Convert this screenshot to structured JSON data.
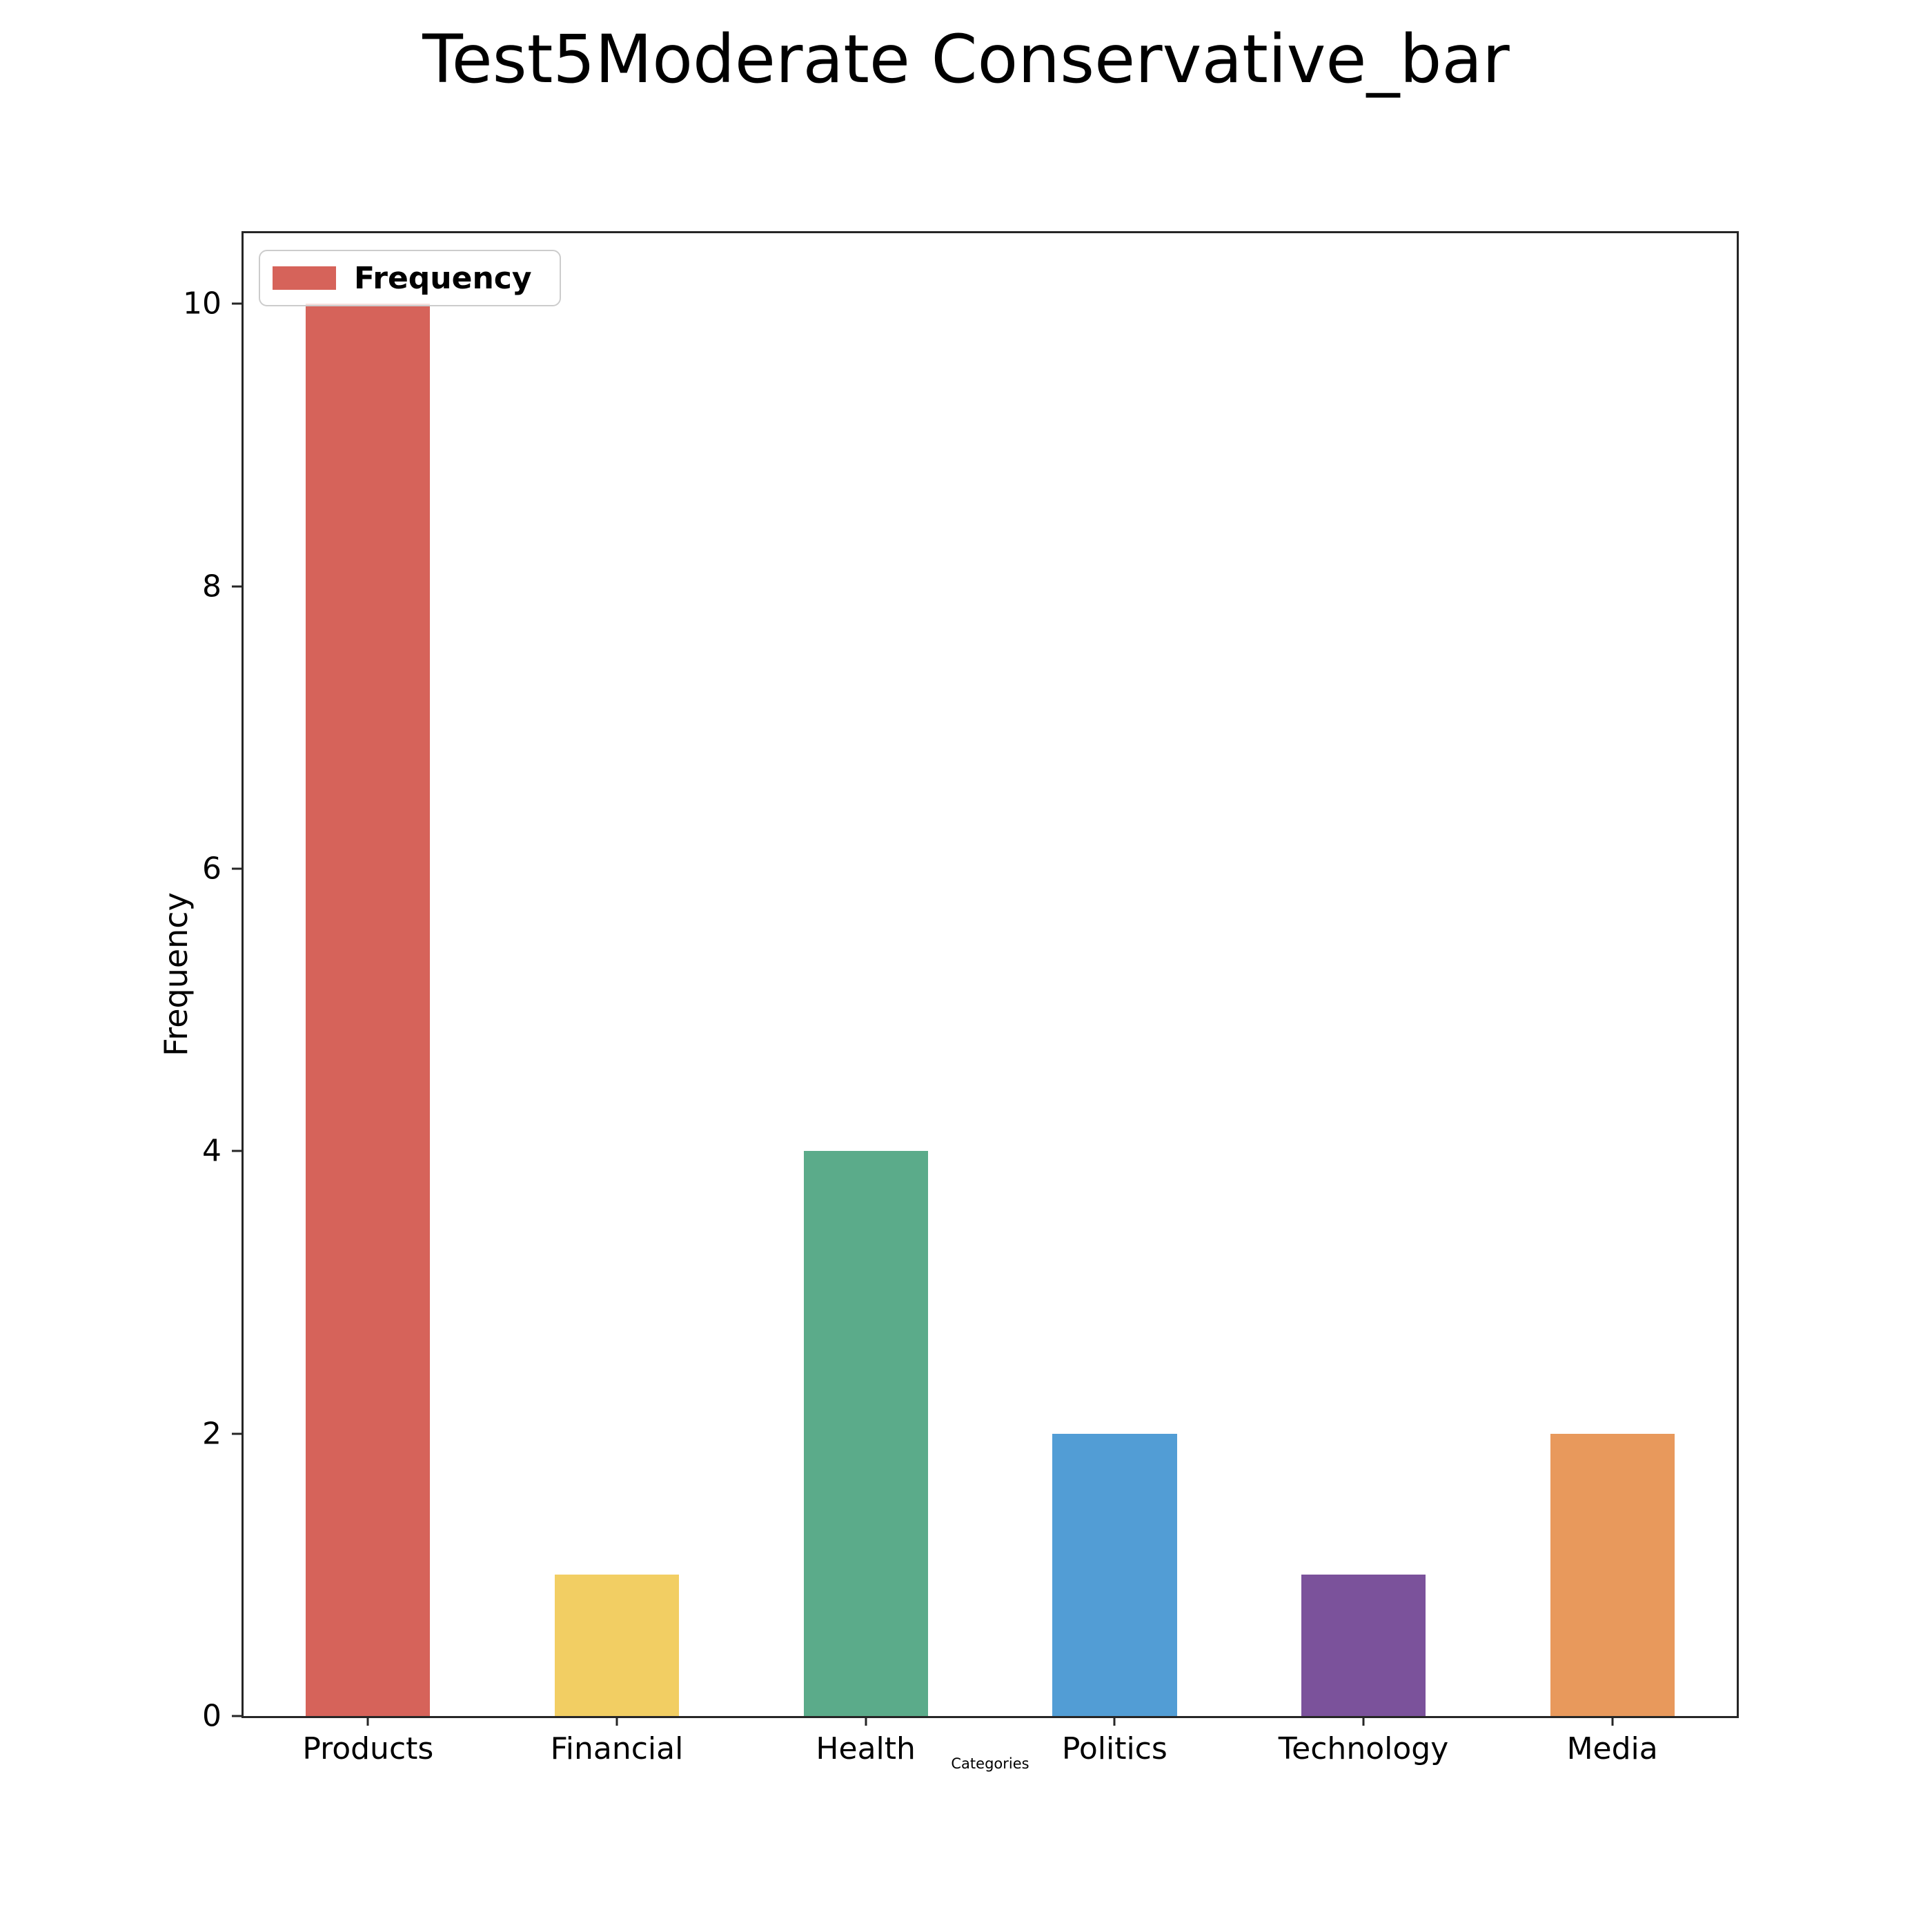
{
  "title": "Test5Moderate Conservative_bar",
  "legend": {
    "label": "Frequency",
    "swatch_color": "#d6635a"
  },
  "axes": {
    "ylabel": "Frequency",
    "xlabel": "Categories"
  },
  "chart_data": {
    "type": "bar",
    "title": "Test5Moderate Conservative_bar",
    "categories": [
      "Products",
      "Financial",
      "Health",
      "Politics",
      "Technology",
      "Media"
    ],
    "values": [
      10,
      1,
      4,
      2,
      1,
      2
    ],
    "bar_colors": [
      "#d6635a",
      "#f2ce63",
      "#5bab8a",
      "#529dd5",
      "#7b529b",
      "#e8995c"
    ],
    "xlabel": "Categories",
    "ylabel": "Frequency",
    "ylim": [
      0,
      10.5
    ],
    "yticks": [
      0,
      2,
      4,
      6,
      8,
      10
    ],
    "grid": false,
    "legend": {
      "position": "upper left",
      "entries": [
        {
          "label": "Frequency",
          "color": "#d6635a"
        }
      ]
    }
  }
}
